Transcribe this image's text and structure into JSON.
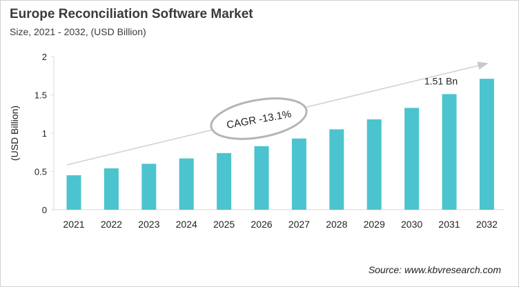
{
  "title": "Europe Reconciliation Software Market",
  "subtitle": "Size, 2021 - 2032, (USD Billion)",
  "source": "Source: www.kbvresearch.com",
  "chart_data": {
    "type": "bar",
    "categories": [
      "2021",
      "2022",
      "2023",
      "2024",
      "2025",
      "2026",
      "2027",
      "2028",
      "2029",
      "2030",
      "2031",
      "2032"
    ],
    "values": [
      0.45,
      0.54,
      0.6,
      0.67,
      0.74,
      0.83,
      0.93,
      1.05,
      1.18,
      1.33,
      1.51,
      1.71
    ],
    "ylabel": "(USD Billion)",
    "ylim": [
      0,
      2
    ],
    "yticks": [
      0,
      0.5,
      1,
      1.5,
      2
    ],
    "ytick_labels": [
      "0",
      "0.5",
      "1",
      "1.5",
      "2"
    ],
    "grid": false,
    "bar_color": "#4bc4cf",
    "annotations": {
      "cagr": "CAGR -13.1%",
      "data_label": "1.51 Bn",
      "data_label_category": "2031"
    }
  }
}
